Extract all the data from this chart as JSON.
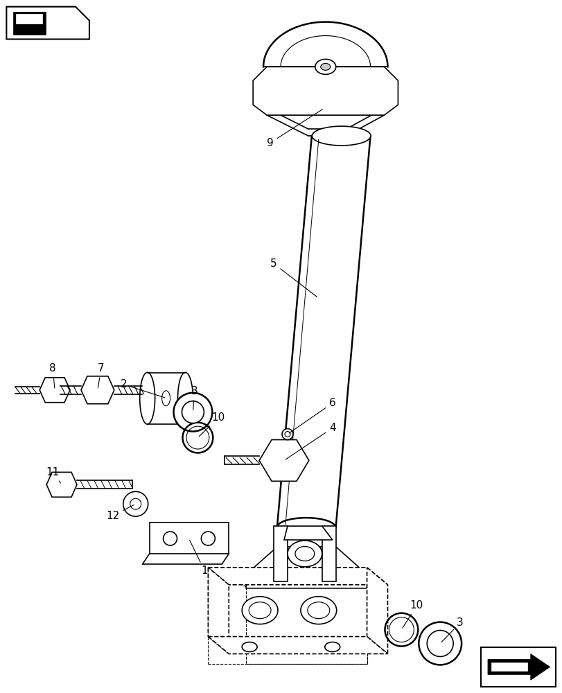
{
  "background_color": "#ffffff",
  "figsize": [
    8.12,
    10.0
  ],
  "dpi": 100,
  "lc": "#000000",
  "lw": 1.2,
  "lw2": 1.8
}
